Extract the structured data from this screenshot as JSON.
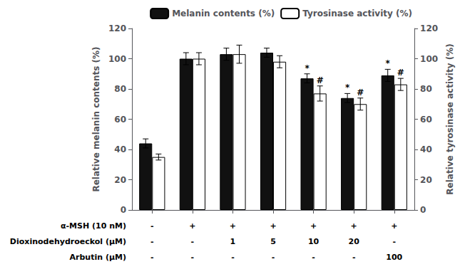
{
  "chart_data": {
    "type": "bar",
    "categories": [
      null,
      null,
      null,
      null,
      null,
      null,
      null
    ],
    "series": [
      {
        "name": "Melanin contents (%)",
        "color": "#111111",
        "values": [
          44,
          100,
          103,
          104,
          87,
          74,
          89
        ],
        "errors": [
          3,
          4,
          4,
          3,
          3,
          3,
          4
        ],
        "sig_labels": [
          null,
          null,
          null,
          null,
          "*",
          "*",
          "*"
        ]
      },
      {
        "name": "Tyrosinase activity (%)",
        "color": "#ffffff",
        "values": [
          35,
          100,
          103,
          98,
          77,
          70,
          83
        ],
        "errors": [
          2,
          4,
          6,
          4,
          5,
          4,
          4
        ],
        "sig_labels": [
          null,
          null,
          null,
          null,
          "#",
          "#",
          "#"
        ]
      }
    ],
    "ylabel": "Relative melanin contents (%)",
    "y2label": "Relative tyrosinase activity (%)",
    "ylim": [
      0,
      120
    ],
    "yticks": [
      0,
      20,
      40,
      60,
      80,
      100,
      120
    ],
    "y2lim": [
      0,
      120
    ],
    "y2ticks": [
      0,
      20,
      40,
      60,
      80,
      100,
      120
    ],
    "legend": "upper right",
    "grid": false,
    "table": [
      {
        "label": "α-MSH (10 nM)",
        "cells": [
          "-",
          "+",
          "+",
          "+",
          "+",
          "+",
          "+"
        ]
      },
      {
        "label": "Dioxinodehydroeckol (μM)",
        "cells": [
          "-",
          "-",
          "1",
          "5",
          "10",
          "20",
          "-"
        ]
      },
      {
        "label": "Arbutin (μM)",
        "cells": [
          "-",
          "-",
          "-",
          "-",
          "-",
          "-",
          "100"
        ]
      }
    ]
  }
}
